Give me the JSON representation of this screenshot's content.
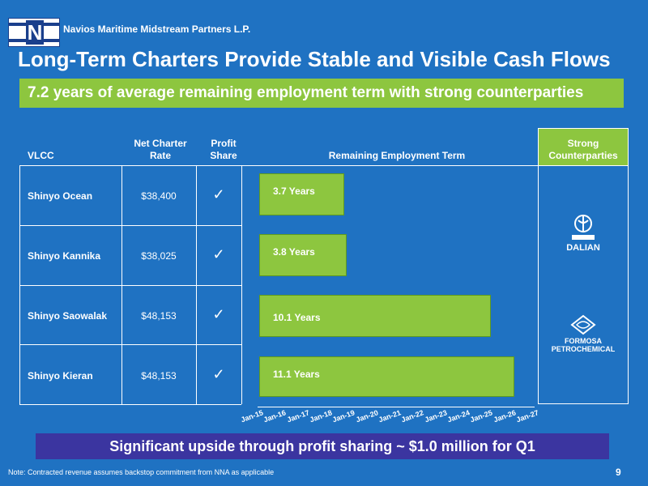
{
  "header": {
    "logo_letter": "N",
    "company": "Navios Maritime Midstream Partners L.P.",
    "title": "Long-Term Charters Provide Stable and Visible Cash Flows"
  },
  "banner_top": "7.2 years of average remaining employment term with strong counterparties",
  "table": {
    "headers": {
      "vlcc": "VLCC",
      "rate": "Net Charter Rate",
      "profit": "Profit Share",
      "term": "Remaining Employment Term",
      "counterparties": "Strong Counterparties"
    },
    "rows": [
      {
        "name": "Shinyo Ocean",
        "rate": "$38,400",
        "check": "✓",
        "term_label": "3.7 Years"
      },
      {
        "name": "Shinyo Kannika",
        "rate": "$38,025",
        "check": "✓",
        "term_label": "3.8 Years"
      },
      {
        "name": "Shinyo Saowalak",
        "rate": "$48,153",
        "check": "✓",
        "term_label": "10.1 Years"
      },
      {
        "name": "Shinyo Kieran",
        "rate": "$48,153",
        "check": "✓",
        "term_label": "11.1 Years"
      }
    ]
  },
  "chart_data": {
    "type": "bar",
    "orientation": "horizontal",
    "categories": [
      "Shinyo Ocean",
      "Shinyo Kannika",
      "Shinyo Saowalak",
      "Shinyo Kieran"
    ],
    "values": [
      3.7,
      3.8,
      10.1,
      11.1
    ],
    "title": "Remaining Employment Term",
    "x_ticks": [
      "Jan-15",
      "Jan-16",
      "Jan-17",
      "Jan-18",
      "Jan-19",
      "Jan-20",
      "Jan-21",
      "Jan-22",
      "Jan-23",
      "Jan-24",
      "Jan-25",
      "Jan-26",
      "Jan-27"
    ],
    "xlim": [
      0,
      12
    ]
  },
  "counterparties": {
    "dalian": "DALIAN",
    "formosa_line1": "FORMOSA",
    "formosa_line2": "PETROCHEMICAL"
  },
  "colors": {
    "background": "#1f72c2",
    "green": "#8dc63f",
    "purple": "#3b35a0"
  },
  "banner_bottom": "Significant upside through profit sharing ~ $1.0 million for Q1",
  "footnote": "Note: Contracted revenue assumes backstop commitment from NNA as applicable",
  "page_number": "9"
}
